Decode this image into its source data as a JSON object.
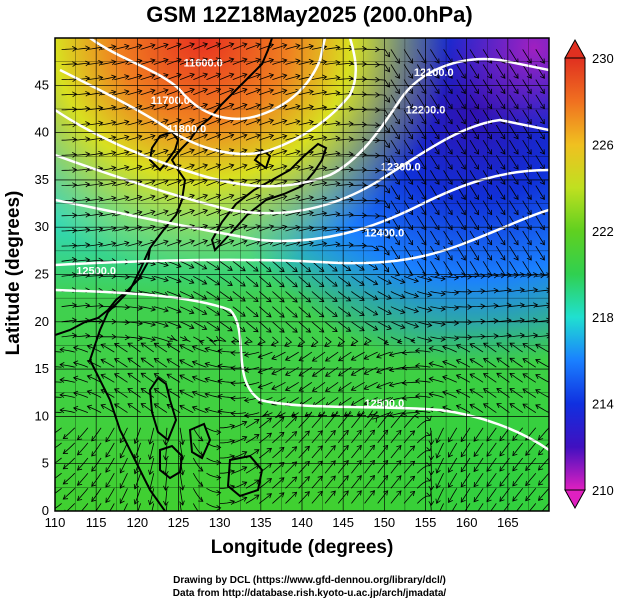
{
  "title": "GSM 12Z18May2025 (200.0hPa)",
  "xlabel": "Longitude (degrees)",
  "ylabel": "Latitude (degrees)",
  "credits": {
    "line1": "Drawing by DCL (https://www.gfd-dennou.org/library/dcl/)",
    "line2": "Data from http://database.rish.kyoto-u.ac.jp/arch/jmadata/"
  },
  "chart_data": {
    "type": "heatmap",
    "xlim": [
      110,
      170
    ],
    "ylim": [
      0,
      50
    ],
    "x_ticks": [
      110,
      115,
      120,
      125,
      130,
      135,
      140,
      145,
      150,
      155,
      160,
      165
    ],
    "y_ticks": [
      0,
      5,
      10,
      15,
      20,
      25,
      30,
      35,
      40,
      45
    ],
    "grid": true,
    "colorbar": {
      "range": [
        210,
        230
      ],
      "ticks": [
        210,
        214,
        218,
        222,
        226,
        230
      ],
      "colors": [
        "#e020c0",
        "#4010c0",
        "#1030e0",
        "#1a80ff",
        "#20e0d0",
        "#30d050",
        "#60d020",
        "#c0e020",
        "#f0c020",
        "#f07020",
        "#e03020"
      ]
    },
    "contours": [
      {
        "label": "11600.0",
        "lon": 128,
        "lat": 47
      },
      {
        "label": "11700.0",
        "lon": 124,
        "lat": 43
      },
      {
        "label": "11800.0",
        "lon": 126,
        "lat": 40
      },
      {
        "label": "12100.0",
        "lon": 156,
        "lat": 46
      },
      {
        "label": "12200.0",
        "lon": 155,
        "lat": 42
      },
      {
        "label": "12300.0",
        "lon": 152,
        "lat": 36
      },
      {
        "label": "12400.0",
        "lon": 150,
        "lat": 29
      },
      {
        "label": "12500.0",
        "lon": 115,
        "lat": 25
      },
      {
        "label": "12500.0",
        "lon": 150,
        "lat": 11
      }
    ]
  }
}
